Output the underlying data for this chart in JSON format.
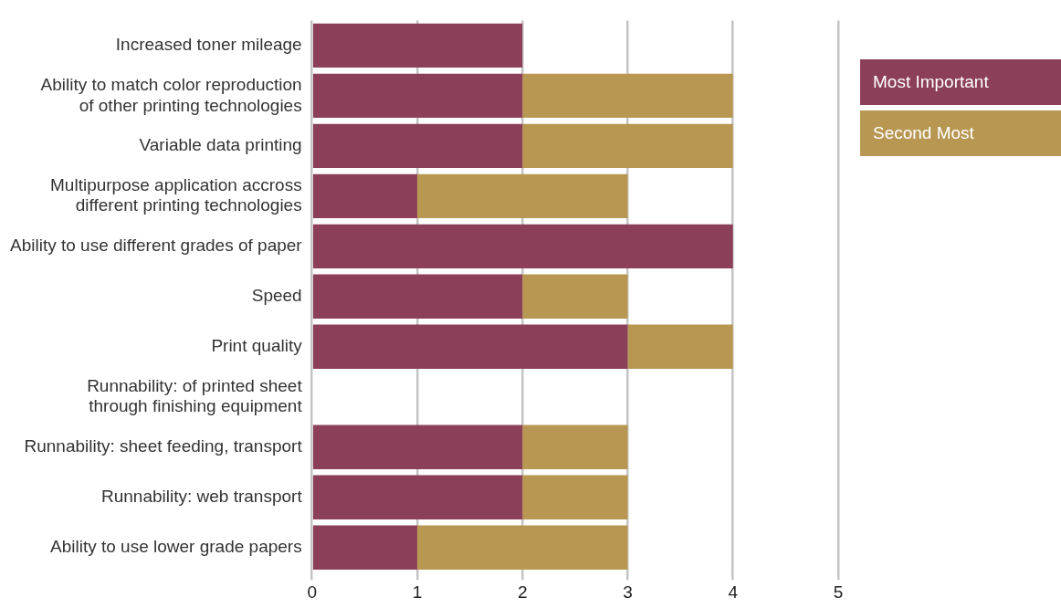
{
  "chart_data": {
    "type": "bar",
    "orientation": "horizontal",
    "stacked": true,
    "categories": [
      "Increased toner mileage",
      "Ability to match color reproduction\nof other printing technologies",
      "Variable data printing",
      "Multipurpose application accross\ndifferent printing technologies",
      "Ability to use different grades of paper",
      "Speed",
      "Print quality",
      "Runnability: of printed sheet\nthrough finishing equipment",
      "Runnability: sheet feeding, transport",
      "Runnability: web transport",
      "Ability to use lower grade papers"
    ],
    "series": [
      {
        "name": "Most Important",
        "color": "#8c3f59",
        "values": [
          2,
          2,
          2,
          1,
          4,
          2,
          3,
          0,
          2,
          2,
          1
        ]
      },
      {
        "name": "Second Most",
        "color": "#b89752",
        "values": [
          0,
          2,
          2,
          2,
          0,
          1,
          1,
          0,
          1,
          1,
          2
        ]
      }
    ],
    "xlim": [
      0,
      5
    ],
    "xticks": [
      0,
      1,
      2,
      3,
      4,
      5
    ],
    "grid": "x",
    "legend": "right"
  }
}
